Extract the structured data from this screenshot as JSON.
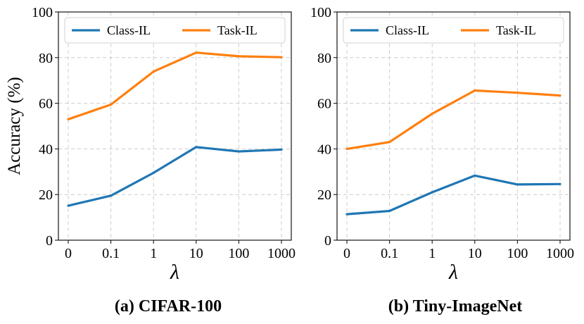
{
  "chart_data": [
    {
      "type": "line",
      "caption": "(a) CIFAR-100",
      "xlabel": "λ",
      "ylabel": "Accuracy (%)",
      "categories": [
        "0",
        "0.1",
        "1",
        "10",
        "100",
        "1000"
      ],
      "ylim": [
        0,
        100
      ],
      "yticks": [
        0,
        20,
        40,
        60,
        80,
        100
      ],
      "grid": true,
      "legend_position": "top",
      "series": [
        {
          "name": "Class-IL",
          "color": "#1f77b4",
          "values": [
            15.1,
            19.5,
            29.5,
            40.8,
            38.9,
            39.7
          ]
        },
        {
          "name": "Task-IL",
          "color": "#ff7f0e",
          "values": [
            53.0,
            59.4,
            73.9,
            82.2,
            80.6,
            80.2
          ]
        }
      ]
    },
    {
      "type": "line",
      "caption": "(b) Tiny-ImageNet",
      "xlabel": "λ",
      "ylabel": "",
      "categories": [
        "0",
        "0.1",
        "1",
        "10",
        "100",
        "1000"
      ],
      "ylim": [
        0,
        100
      ],
      "yticks": [
        0,
        20,
        40,
        60,
        80,
        100
      ],
      "grid": true,
      "legend_position": "top",
      "series": [
        {
          "name": "Class-IL",
          "color": "#1f77b4",
          "values": [
            11.4,
            12.8,
            21.0,
            28.3,
            24.4,
            24.6
          ]
        },
        {
          "name": "Task-IL",
          "color": "#ff7f0e",
          "values": [
            40.0,
            43.0,
            55.4,
            65.6,
            64.6,
            63.4
          ]
        }
      ]
    }
  ]
}
